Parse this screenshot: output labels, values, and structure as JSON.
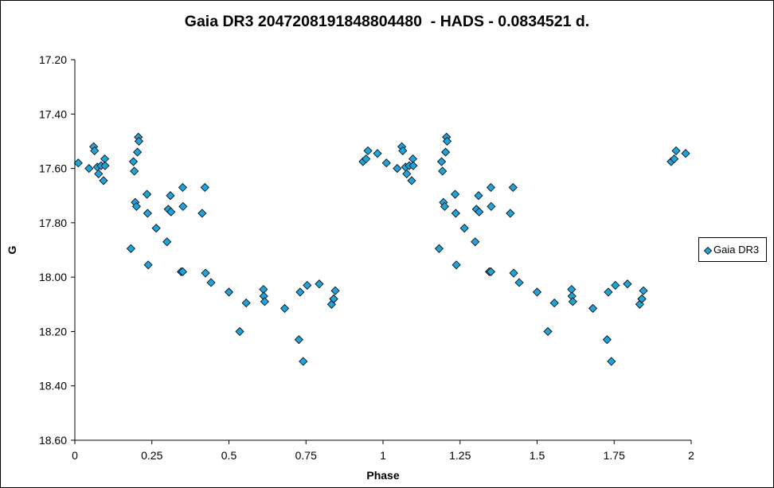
{
  "chart_data": {
    "type": "scatter",
    "title": "Gaia DR3 2047208191848804480  - HADS - 0.0834521 d.",
    "xlabel": "Phase",
    "ylabel": "G",
    "xlim": [
      0,
      2
    ],
    "ylim": [
      17.2,
      18.6
    ],
    "y_reversed": true,
    "x_ticks": [
      0,
      0.25,
      0.5,
      0.75,
      1,
      1.25,
      1.5,
      1.75,
      2
    ],
    "x_tick_labels": [
      "0",
      "0.25",
      "0.5",
      "0.75",
      "1",
      "1.25",
      "1.5",
      "1.75",
      "2"
    ],
    "y_ticks": [
      17.2,
      17.4,
      17.6,
      17.8,
      18.0,
      18.2,
      18.4,
      18.6
    ],
    "y_tick_labels": [
      "17.20",
      "17.40",
      "17.60",
      "17.80",
      "18.00",
      "18.20",
      "18.40",
      "18.60"
    ],
    "grid": false,
    "legend_position": "right",
    "marker_color": "#1FA3D9",
    "series": [
      {
        "name": "Gaia DR3",
        "marker": "diamond",
        "x": [
          0.011,
          0.046,
          0.061,
          0.064,
          0.073,
          0.077,
          0.085,
          0.093,
          0.097,
          0.098,
          0.19,
          0.193,
          0.196,
          0.2,
          0.203,
          0.206,
          0.208,
          0.182,
          0.234,
          0.236,
          0.238,
          0.264,
          0.299,
          0.303,
          0.31,
          0.312,
          0.35,
          0.351,
          0.345,
          0.35,
          0.413,
          0.422,
          0.424,
          0.442,
          0.5,
          0.535,
          0.556,
          0.612,
          0.613,
          0.616,
          0.681,
          0.727,
          0.731,
          0.741,
          0.754,
          0.793,
          0.833,
          0.84,
          0.84,
          0.845,
          0.935,
          0.945,
          0.951,
          0.982,
          1.011,
          1.046,
          1.061,
          1.064,
          1.073,
          1.077,
          1.085,
          1.093,
          1.097,
          1.098,
          1.19,
          1.193,
          1.196,
          1.2,
          1.203,
          1.206,
          1.208,
          1.182,
          1.234,
          1.236,
          1.238,
          1.264,
          1.299,
          1.303,
          1.31,
          1.312,
          1.35,
          1.351,
          1.345,
          1.35,
          1.413,
          1.422,
          1.424,
          1.442,
          1.5,
          1.535,
          1.556,
          1.612,
          1.613,
          1.616,
          1.681,
          1.727,
          1.731,
          1.741,
          1.754,
          1.793,
          1.833,
          1.84,
          1.84,
          1.845,
          1.935,
          1.945,
          1.951,
          1.982
        ],
        "y": [
          17.58,
          17.6,
          17.52,
          17.535,
          17.595,
          17.62,
          17.59,
          17.645,
          17.565,
          17.59,
          17.575,
          17.61,
          17.725,
          17.74,
          17.54,
          17.485,
          17.5,
          17.895,
          17.695,
          17.765,
          17.955,
          17.82,
          17.87,
          17.75,
          17.7,
          17.76,
          17.67,
          17.74,
          17.98,
          17.98,
          17.765,
          17.67,
          17.985,
          18.02,
          18.055,
          18.2,
          18.095,
          18.045,
          18.07,
          18.09,
          18.115,
          18.23,
          18.055,
          18.31,
          18.03,
          18.025,
          18.1,
          18.08,
          18.08,
          18.05,
          17.575,
          17.565,
          17.535,
          17.545,
          17.58,
          17.6,
          17.52,
          17.535,
          17.595,
          17.62,
          17.59,
          17.645,
          17.565,
          17.59,
          17.575,
          17.61,
          17.725,
          17.74,
          17.54,
          17.485,
          17.5,
          17.895,
          17.695,
          17.765,
          17.955,
          17.82,
          17.87,
          17.75,
          17.7,
          17.76,
          17.67,
          17.74,
          17.98,
          17.98,
          17.765,
          17.67,
          17.985,
          18.02,
          18.055,
          18.2,
          18.095,
          18.045,
          18.07,
          18.09,
          18.115,
          18.23,
          18.055,
          18.31,
          18.03,
          18.025,
          18.1,
          18.08,
          18.08,
          18.05,
          17.575,
          17.565,
          17.535,
          17.545
        ]
      }
    ]
  }
}
